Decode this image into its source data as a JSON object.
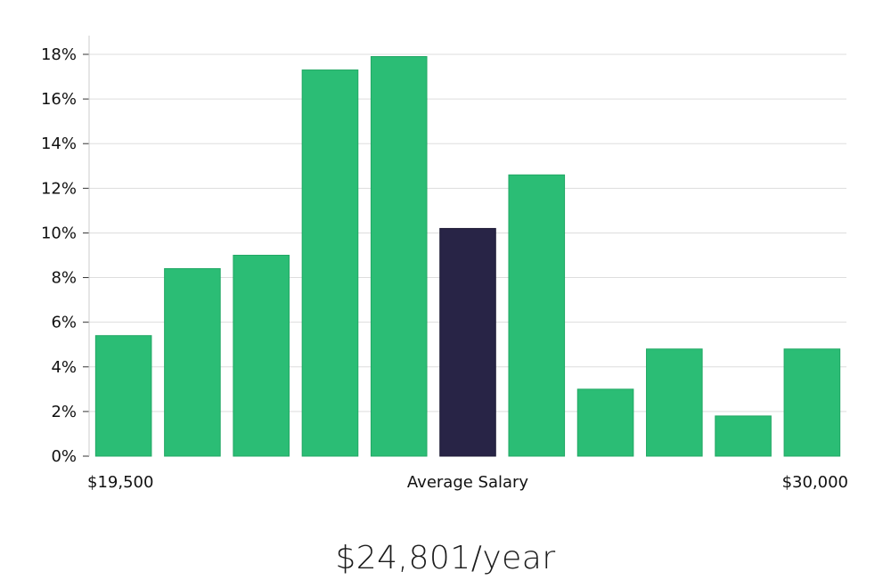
{
  "chart_data": {
    "type": "bar",
    "values": [
      5.4,
      8.4,
      9.0,
      17.3,
      17.9,
      10.2,
      12.6,
      3.0,
      4.8,
      1.8,
      4.8
    ],
    "highlight_index": 5,
    "y_unit": "%",
    "ylim": [
      0,
      18
    ],
    "y_ticks": [
      0,
      2,
      4,
      6,
      8,
      10,
      12,
      14,
      16,
      18
    ],
    "x_left_label": "$19,500",
    "x_center_label": "Average Salary",
    "x_right_label": "$30,000",
    "grid": true,
    "colors": {
      "bar": "#2bbd75",
      "highlight": "#282446",
      "grid": "#dddddd",
      "axis": "#cccccc"
    }
  },
  "salary_summary": "$24,801/year"
}
